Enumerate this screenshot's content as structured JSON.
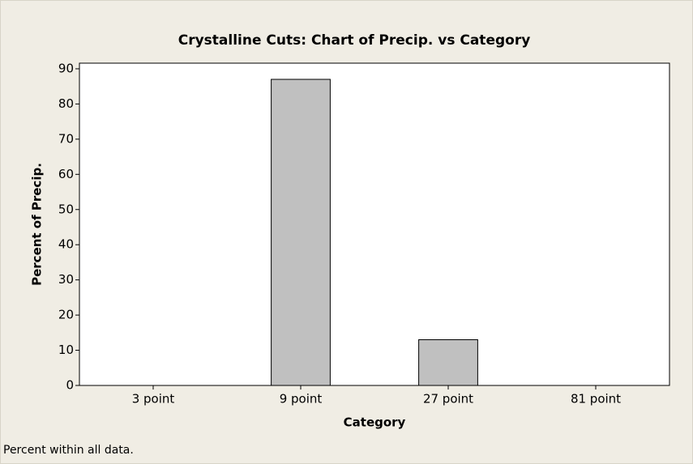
{
  "chart_data": {
    "type": "bar",
    "title": "Crystalline Cuts:  Chart of Precip. vs Category",
    "x_label": "Category",
    "y_label": "Percent of Precip.",
    "footnote": "Percent within all data.",
    "categories": [
      "3 point",
      "9 point",
      "27 point",
      "81 point"
    ],
    "values": [
      0,
      87,
      13,
      0
    ],
    "color": "#c0c0c0",
    "ylim": [
      0,
      91.6
    ],
    "yticks": [
      0,
      10,
      20,
      30,
      40,
      50,
      60,
      70,
      80,
      90
    ],
    "grid": false
  }
}
